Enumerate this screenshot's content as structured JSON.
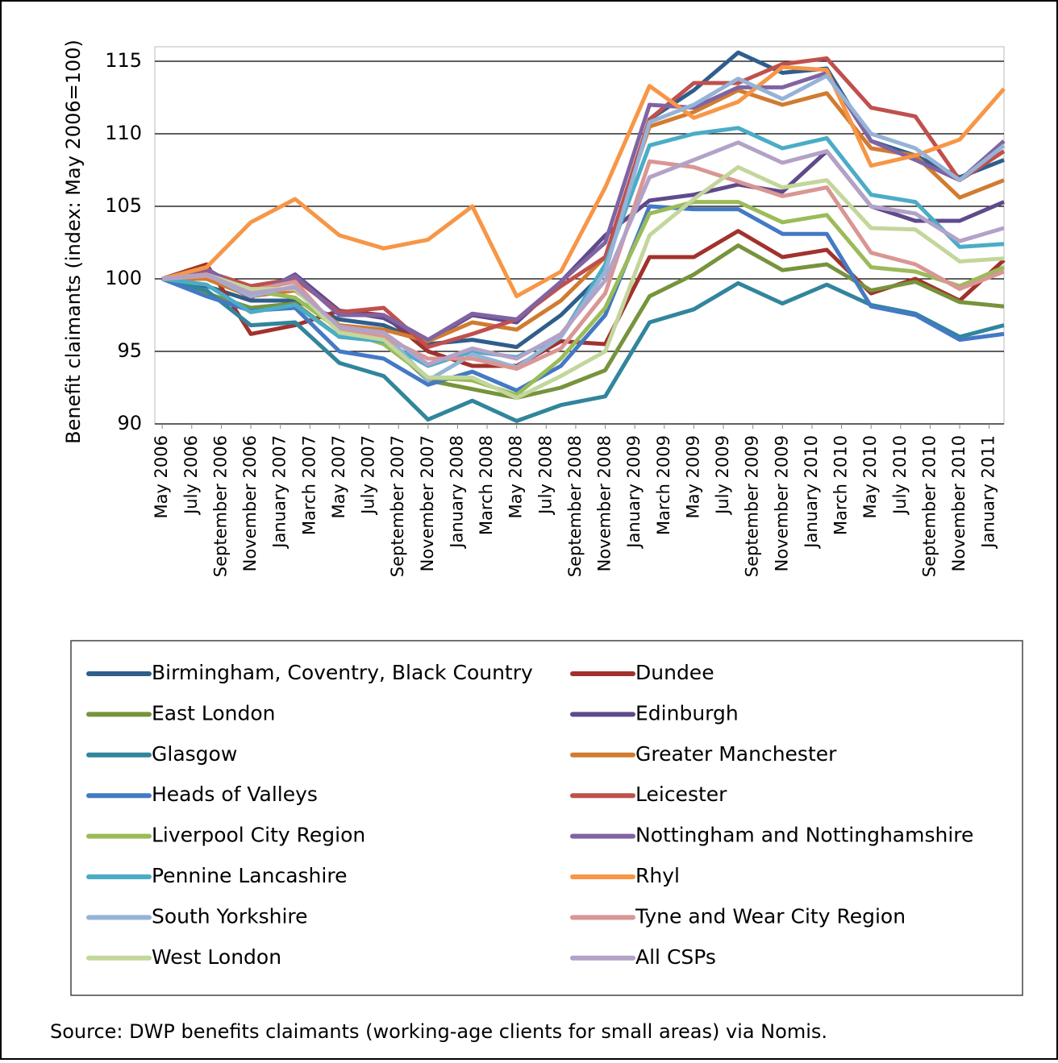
{
  "chart_data": {
    "type": "line",
    "y_label": "Benefit claimants (index: May 2006=100)",
    "source": "Source: DWP benefits claimants (working-age clients for small areas) via Nomis.",
    "x": [
      0,
      3,
      6,
      9,
      12,
      15,
      18,
      21,
      24,
      27,
      30,
      33,
      36,
      39,
      42,
      45,
      48,
      51,
      54,
      57
    ],
    "xlim": [
      -0.5,
      57
    ],
    "xticks": [
      {
        "value": 0,
        "label": "May 2006"
      },
      {
        "value": 2,
        "label": "July 2006"
      },
      {
        "value": 4,
        "label": "September 2006"
      },
      {
        "value": 6,
        "label": "November 2006"
      },
      {
        "value": 8,
        "label": "January 2007"
      },
      {
        "value": 10,
        "label": "March 2007"
      },
      {
        "value": 12,
        "label": "May 2007"
      },
      {
        "value": 14,
        "label": "July 2007"
      },
      {
        "value": 16,
        "label": "September 2007"
      },
      {
        "value": 18,
        "label": "November 2007"
      },
      {
        "value": 20,
        "label": "January 2008"
      },
      {
        "value": 22,
        "label": "March 2008"
      },
      {
        "value": 24,
        "label": "May 2008"
      },
      {
        "value": 26,
        "label": "July 2008"
      },
      {
        "value": 28,
        "label": "September 2008"
      },
      {
        "value": 30,
        "label": "November 2008"
      },
      {
        "value": 32,
        "label": "January 2009"
      },
      {
        "value": 34,
        "label": "March 2009"
      },
      {
        "value": 36,
        "label": "May 2009"
      },
      {
        "value": 38,
        "label": "July 2009"
      },
      {
        "value": 40,
        "label": "September 2009"
      },
      {
        "value": 42,
        "label": "November 2009"
      },
      {
        "value": 44,
        "label": "January 2010"
      },
      {
        "value": 46,
        "label": "March 2010"
      },
      {
        "value": 48,
        "label": "May 2010"
      },
      {
        "value": 50,
        "label": "July 2010"
      },
      {
        "value": 52,
        "label": "September 2010"
      },
      {
        "value": 54,
        "label": "November 2010"
      },
      {
        "value": 56,
        "label": "January 2011"
      }
    ],
    "ylim": [
      90,
      116
    ],
    "yticks": [
      90,
      95,
      100,
      105,
      110,
      115
    ],
    "grid": true,
    "legend": "bottom",
    "series": [
      {
        "name": "Birmingham, Coventry, Black Country",
        "color": "#2f5e8c",
        "values": [
          100,
          99.5,
          98.5,
          98.5,
          97.2,
          96.8,
          95.5,
          95.8,
          95.3,
          97.5,
          100.5,
          111,
          113,
          115.6,
          114.2,
          114.5,
          109.5,
          108.5,
          107,
          108.2
        ]
      },
      {
        "name": "Dundee",
        "color": "#a1322d",
        "values": [
          100,
          101,
          96.2,
          96.8,
          97.8,
          97.5,
          95,
          94,
          94,
          95.7,
          95.5,
          101.5,
          101.5,
          103.3,
          101.5,
          102,
          99,
          100,
          98.5,
          101.3
        ]
      },
      {
        "name": "East London",
        "color": "#77933c",
        "values": [
          100,
          99,
          98,
          98.3,
          96,
          95.8,
          93,
          92.4,
          91.8,
          92.5,
          93.7,
          98.8,
          100.3,
          102.3,
          100.6,
          101,
          99.2,
          99.8,
          98.4,
          98.1
        ]
      },
      {
        "name": "Edinburgh",
        "color": "#5f4a8b",
        "values": [
          100,
          100.3,
          98.7,
          100.3,
          97.8,
          97.3,
          95.7,
          97.5,
          97,
          99.8,
          103,
          105.4,
          105.8,
          106.5,
          106,
          108.8,
          105,
          104,
          104,
          105.3
        ]
      },
      {
        "name": "Glasgow",
        "color": "#31859c",
        "values": [
          100,
          99.2,
          96.8,
          97,
          94.2,
          93.3,
          90.3,
          91.6,
          90.2,
          91.3,
          91.9,
          97,
          97.9,
          99.7,
          98.3,
          99.6,
          98.2,
          97.6,
          96,
          96.8
        ]
      },
      {
        "name": "Greater Manchester",
        "color": "#d07c30",
        "values": [
          100,
          100,
          98.8,
          99.2,
          96.8,
          96.5,
          95.7,
          97,
          96.5,
          98.5,
          101.5,
          110.5,
          111.5,
          113,
          112,
          112.8,
          109,
          108.5,
          105.6,
          106.8
        ]
      },
      {
        "name": "Heads of Valleys",
        "color": "#4479c4",
        "values": [
          100,
          98.8,
          97.8,
          98,
          95,
          94.5,
          92.7,
          93.6,
          92.3,
          94,
          97.5,
          105,
          104.8,
          104.8,
          103.1,
          103.1,
          98.1,
          97.5,
          95.8,
          96.2
        ]
      },
      {
        "name": "Leicester",
        "color": "#c0504d",
        "values": [
          100,
          100.5,
          99.5,
          100,
          97.7,
          98,
          95.3,
          96.2,
          97.2,
          99.5,
          101.5,
          111,
          113.5,
          113.5,
          114.8,
          115.2,
          111.8,
          111.2,
          106.8,
          108.8
        ]
      },
      {
        "name": "Liverpool City Region",
        "color": "#9bbb59",
        "values": [
          100,
          100.3,
          99.2,
          98.7,
          96.5,
          95.5,
          93.2,
          93,
          92,
          94.5,
          98,
          104.5,
          105.3,
          105.3,
          103.9,
          104.4,
          100.8,
          100.5,
          99.5,
          100.8
        ]
      },
      {
        "name": "Nottingham and Nottinghamshire",
        "color": "#8064a2",
        "values": [
          100,
          100.7,
          98.9,
          100.2,
          97.5,
          97.5,
          95.8,
          97.6,
          97.2,
          99.8,
          102.5,
          112,
          111.8,
          113.2,
          113.2,
          114.2,
          109.5,
          108.2,
          106.8,
          109.5
        ]
      },
      {
        "name": "Pennine Lancashire",
        "color": "#4bacc6",
        "values": [
          100,
          99.6,
          97.7,
          98.2,
          96,
          95.7,
          94,
          95,
          94.6,
          96,
          101,
          109.2,
          110,
          110.4,
          109,
          109.7,
          105.8,
          105.3,
          102.2,
          102.4
        ]
      },
      {
        "name": "Rhyl",
        "color": "#f79646",
        "values": [
          100,
          100.8,
          103.9,
          105.5,
          103,
          102.1,
          102.7,
          105,
          98.8,
          100.5,
          106.3,
          113.3,
          111.1,
          112.2,
          114.6,
          114.4,
          107.8,
          108.5,
          109.6,
          113.1
        ]
      },
      {
        "name": "South Yorkshire",
        "color": "#95b3d7",
        "values": [
          100,
          100.3,
          98.8,
          99.5,
          96.5,
          96.3,
          93,
          94.8,
          93.9,
          96,
          100.5,
          110.8,
          112,
          113.8,
          112.4,
          114,
          110,
          109,
          106.8,
          109.2
        ]
      },
      {
        "name": "Tyne and Wear City Region",
        "color": "#d99694",
        "values": [
          100,
          100.2,
          99.2,
          99.8,
          96.4,
          96,
          94.5,
          94.5,
          93.8,
          95.2,
          99,
          108.1,
          107.7,
          106.7,
          105.7,
          106.3,
          101.8,
          101,
          99.3,
          100.5
        ]
      },
      {
        "name": "West London",
        "color": "#c3d69b",
        "values": [
          100,
          100.3,
          99.3,
          99.3,
          96.3,
          95.8,
          93.2,
          93.2,
          91.8,
          93.3,
          95,
          103,
          105.5,
          107.7,
          106.3,
          106.8,
          103.5,
          103.4,
          101.2,
          101.4
        ]
      },
      {
        "name": "All CSPs",
        "color": "#b3a2c7",
        "values": [
          100,
          100.3,
          99,
          99.4,
          96.7,
          96.3,
          94.1,
          95.2,
          94.5,
          96.2,
          99.9,
          107,
          108.2,
          109.4,
          108,
          108.8,
          105,
          104.5,
          102.6,
          103.5
        ]
      }
    ]
  }
}
